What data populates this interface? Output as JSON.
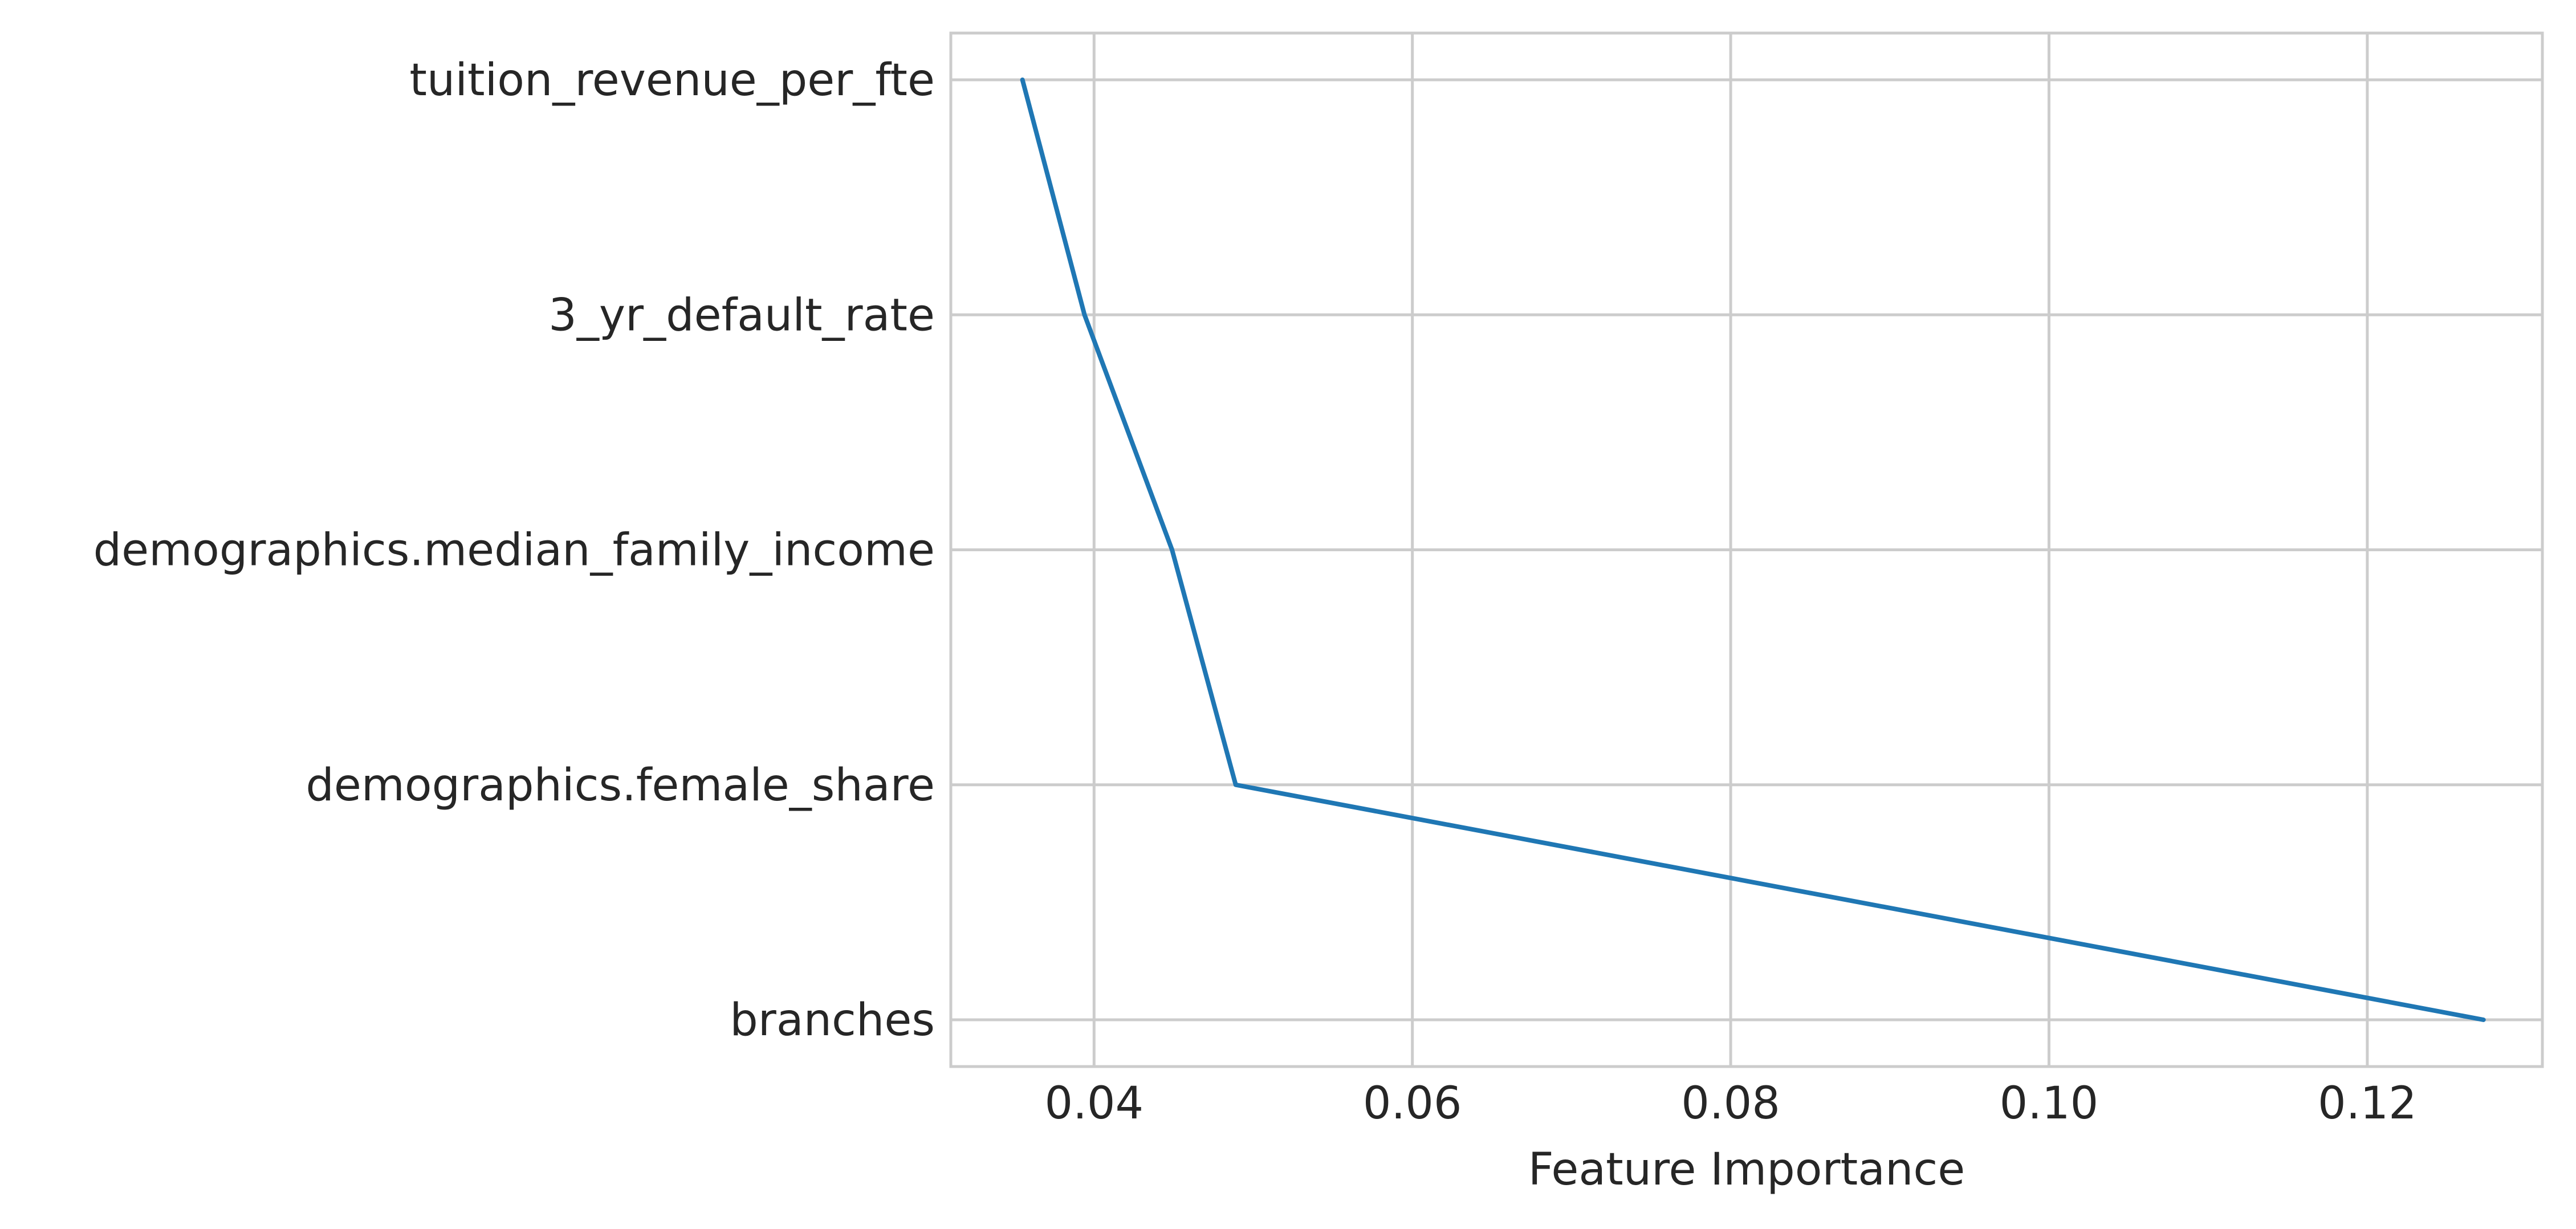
{
  "chart_data": {
    "type": "line",
    "title": "",
    "xlabel": "Feature Importance",
    "ylabel": "",
    "xlim": [
      0.031,
      0.131
    ],
    "x_ticks": [
      0.04,
      0.06,
      0.08,
      0.1,
      0.12
    ],
    "x_tick_labels": [
      "0.04",
      "0.06",
      "0.08",
      "0.10",
      "0.12"
    ],
    "categories": [
      "tuition_revenue_per_fte",
      "3_yr_default_rate",
      "demographics.median_family_income",
      "demographics.female_share",
      "branches"
    ],
    "values": [
      0.0355,
      0.0394,
      0.0449,
      0.0489,
      0.1273
    ],
    "grid": true,
    "legend": "none",
    "colors": {
      "line": "#1f77b4",
      "grid": "#cccccc",
      "spine": "#cccccc",
      "text": "#262626"
    }
  }
}
